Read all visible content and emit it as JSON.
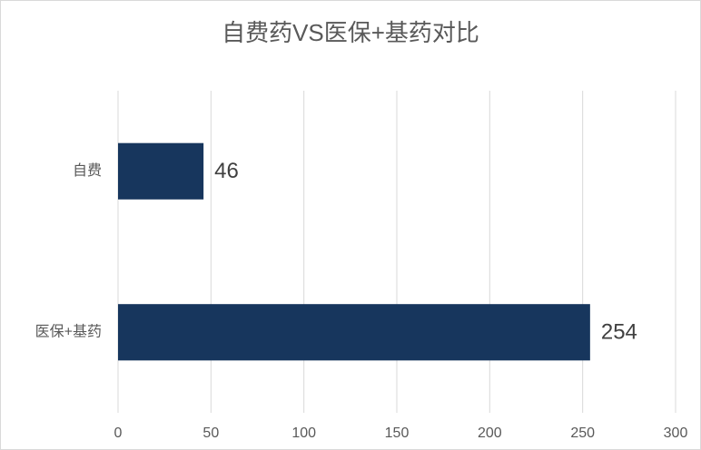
{
  "chart_data": {
    "type": "barh",
    "title": "自费药VS医保+基药对比",
    "categories": [
      "自费",
      "医保+基药"
    ],
    "values": [
      46,
      254
    ],
    "color": "#17365d",
    "xlim": [
      0,
      300
    ],
    "xticks": [
      0,
      50,
      100,
      150,
      200,
      250,
      300
    ],
    "grid": true
  }
}
